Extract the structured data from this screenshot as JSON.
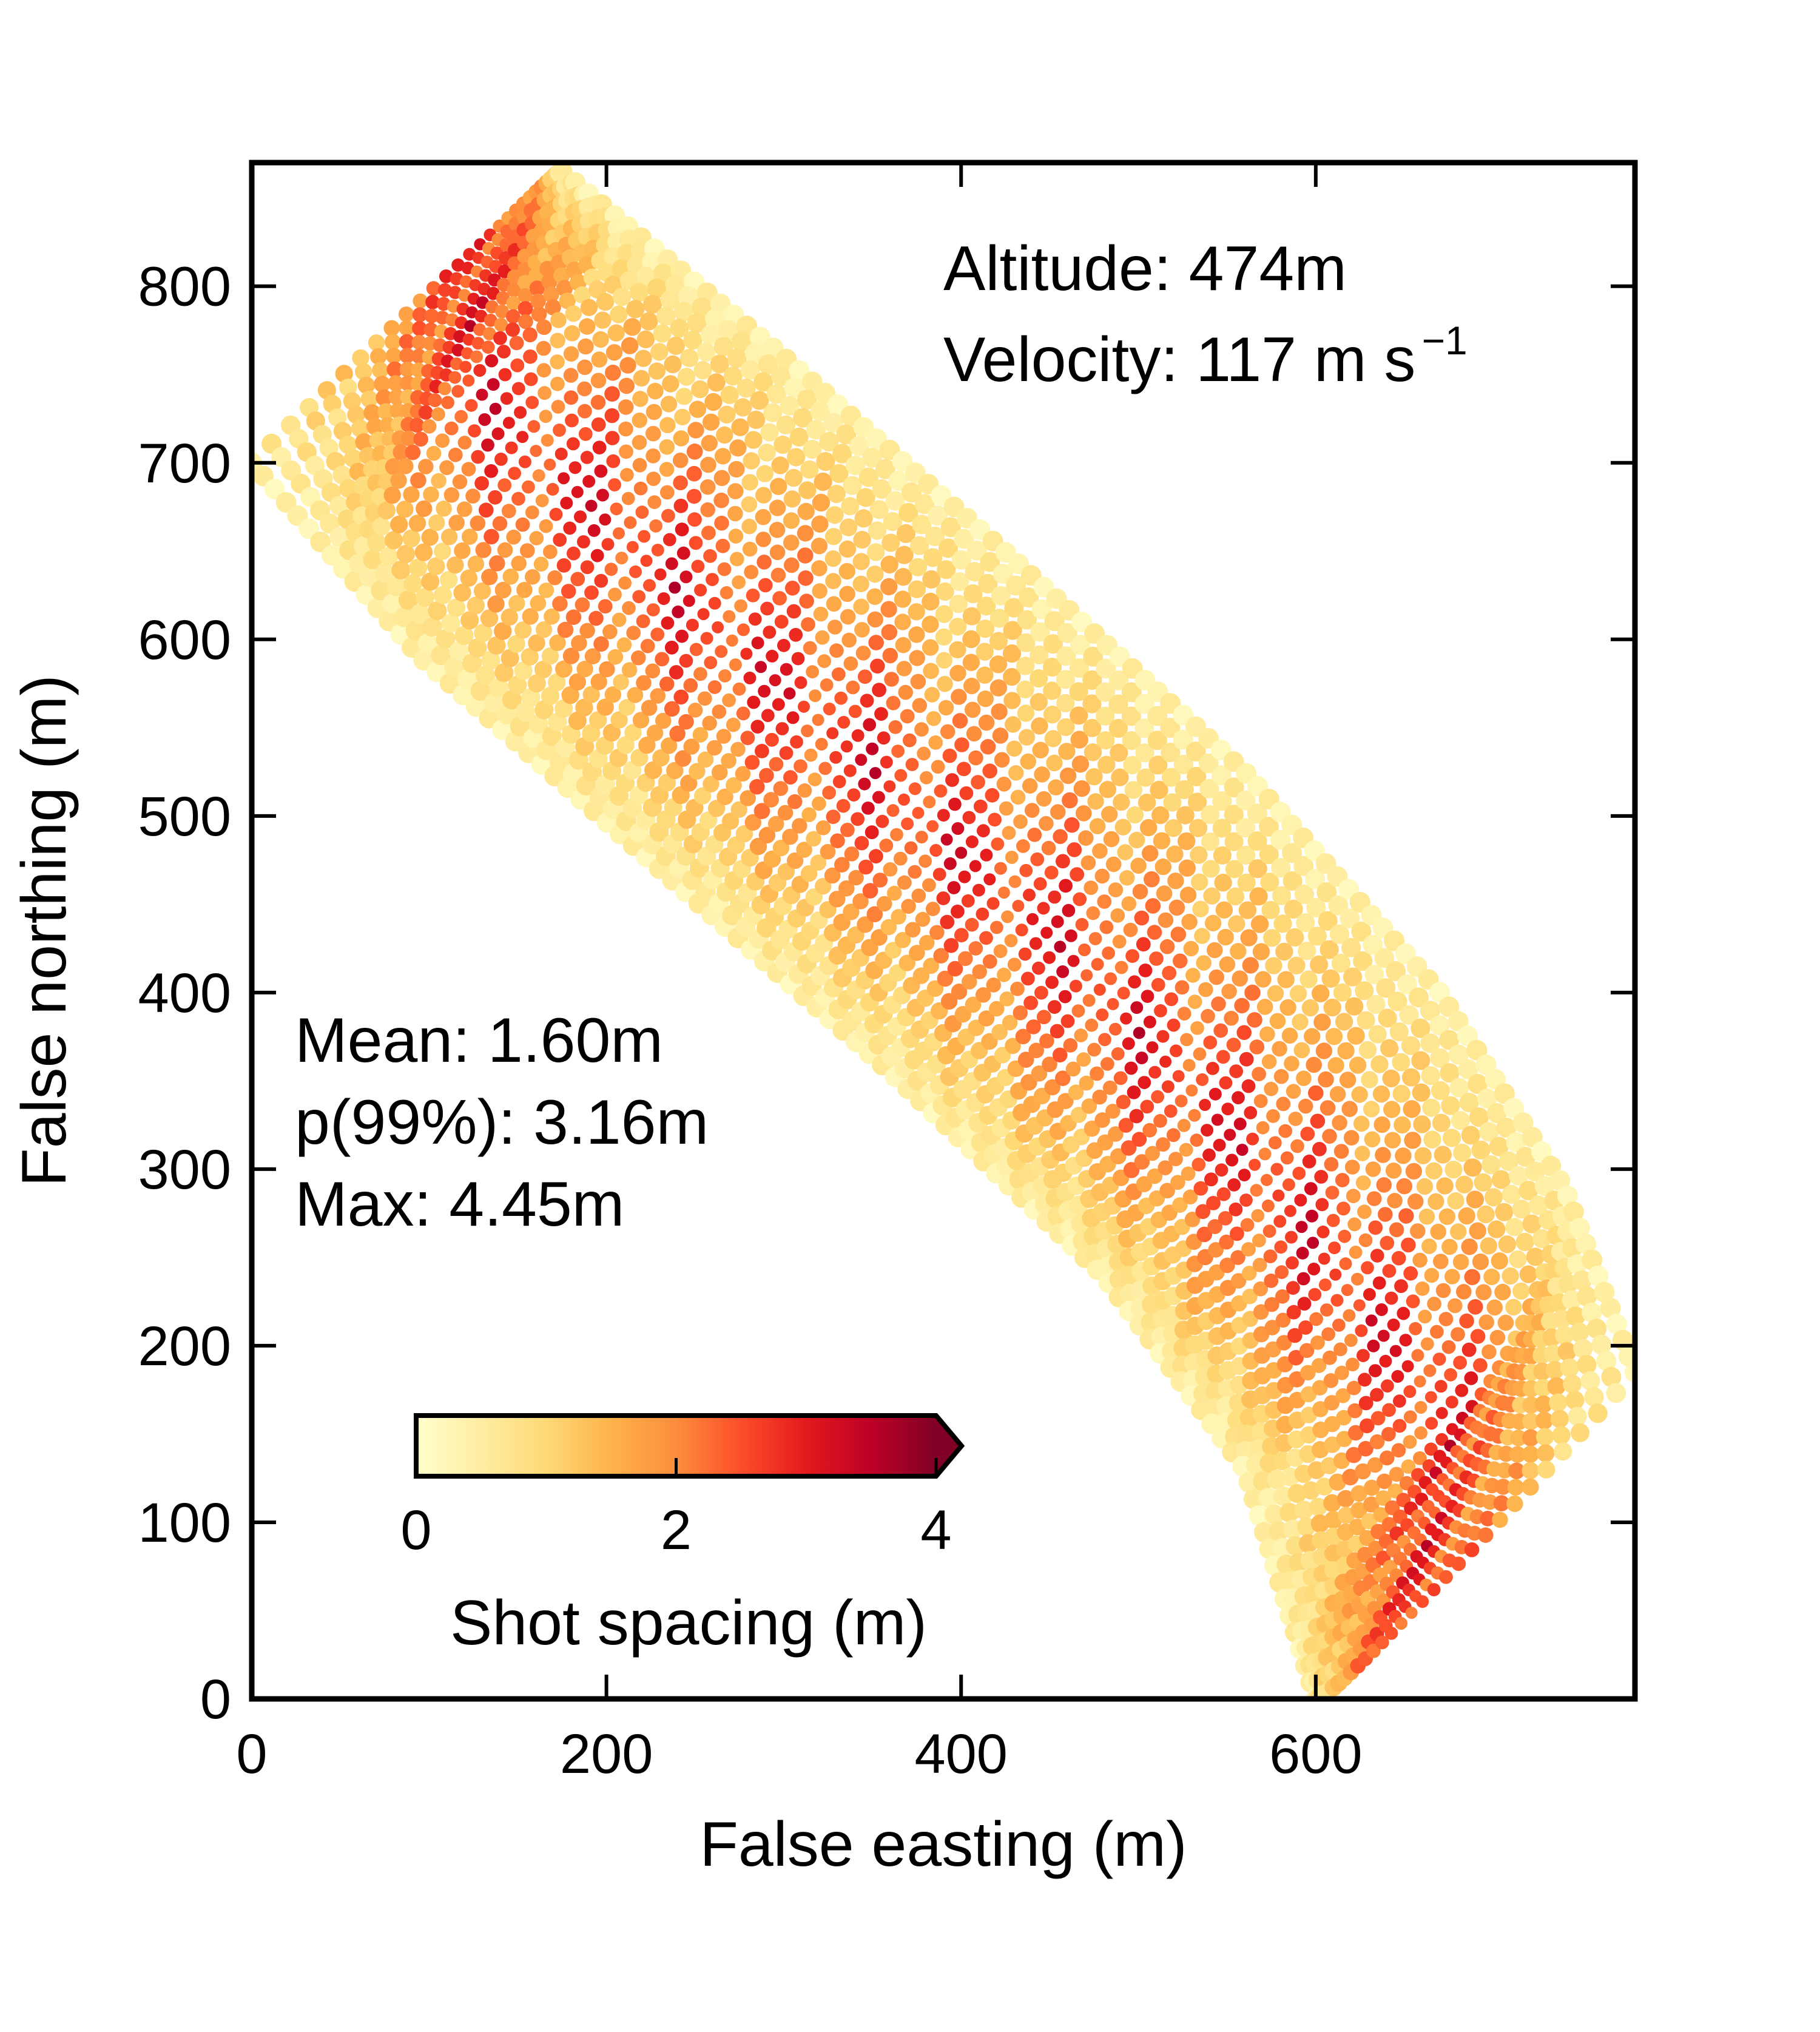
{
  "chart_data": {
    "type": "scatter",
    "xlabel": "False easting (m)",
    "ylabel": "False northing (m)",
    "xlim": [
      0,
      780
    ],
    "ylim": [
      0,
      870
    ],
    "xticks": [
      0,
      200,
      400,
      600
    ],
    "yticks": [
      0,
      100,
      200,
      300,
      400,
      500,
      600,
      700,
      800
    ],
    "grid": false,
    "swath": {
      "centerline": [
        [
          170,
          865
        ],
        [
          85,
          782
        ],
        [
          200,
          655
        ],
        [
          320,
          540
        ],
        [
          440,
          425
        ],
        [
          540,
          310
        ],
        [
          620,
          200
        ],
        [
          700,
          110
        ],
        [
          618,
          5
        ]
      ],
      "edge_left": [
        [
          0,
          700
        ],
        [
          95,
          590
        ],
        [
          230,
          470
        ],
        [
          360,
          355
        ],
        [
          480,
          240
        ],
        [
          560,
          130
        ],
        [
          600,
          0
        ]
      ],
      "edge_right": [
        [
          175,
          865
        ],
        [
          300,
          760
        ],
        [
          430,
          645
        ],
        [
          560,
          525
        ],
        [
          670,
          400
        ],
        [
          740,
          290
        ],
        [
          780,
          185
        ]
      ],
      "value_range": [
        0,
        4.45
      ]
    },
    "annotations": {
      "altitude": "Altitude: 474m",
      "velocity_prefix": "Velocity: 117 m s",
      "velocity_exponent": "−1",
      "mean": "Mean: 1.60m",
      "p99": "p(99%): 3.16m",
      "max": "Max: 4.45m"
    },
    "colorbar": {
      "label": "Shot spacing (m)",
      "range": [
        0,
        4
      ],
      "ticks": [
        0,
        2,
        4
      ],
      "extend": "max",
      "colormap": "YlOrRd",
      "location": "lower-left"
    },
    "colors": {
      "ylorrd": [
        "#ffffcc",
        "#ffeda0",
        "#fed976",
        "#feb24c",
        "#fd8d3c",
        "#fc4e2a",
        "#e31a1c",
        "#bd0026",
        "#800026"
      ]
    }
  }
}
